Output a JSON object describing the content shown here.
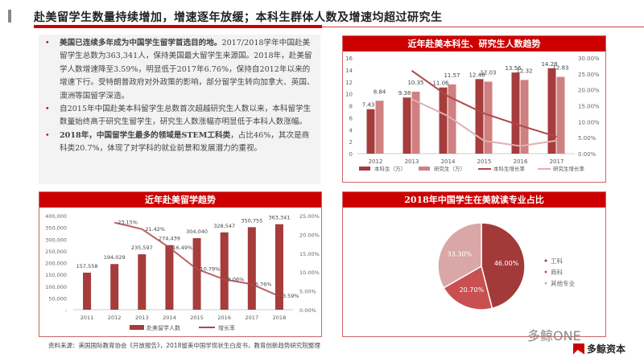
{
  "header": {
    "title": "赴美留学生数量持续增加，增速逐年放缓；本科生群体人数及增速均超过研究生"
  },
  "bullets": [
    {
      "bold": "美国已连续多年成为中国学生留学首选目的地。",
      "text": "2017/2018学年中国赴美留学生总数为363,341人，保持美国最大留学生来源国。2018年，赴美留学人数增速降至3.59%，明显低于2017年6.76%，保持自2012年以来的增速下行。受特朗普政府对外政策的影响，部分留学生转向加拿大、英国、澳洲等国留学深造。"
    },
    {
      "bold": "",
      "text": "自2015年中国赴美本科留学生总数首次超越研究生人数以来，本科留学生数量始终高于研究生留学生，研究生人数涨幅亦明显低于本科人数涨幅。"
    },
    {
      "bold": "2018年，中国留学生最多的领域是STEM工科类",
      "text": "，占比46%，其次是商科类20.7%，体现了对学科的就业前景和发展潜力的重视。",
      "prefix": ""
    }
  ],
  "colors": {
    "dark": "#a63c3c",
    "light": "#d08080",
    "line1": "#b04848",
    "line2": "#e0b0b0",
    "red": "#cc0000",
    "pie": [
      "#a33a3a",
      "#c85050",
      "#d9a7a7"
    ]
  },
  "chart_data": [
    {
      "type": "bar",
      "title": "近年赴美本科生、研究生人数趋势",
      "categories": [
        "2012",
        "2013",
        "2014",
        "2015",
        "2016",
        "2017"
      ],
      "series": [
        {
          "name": "本科生（万）",
          "values": [
            7.43,
            9.38,
            11.06,
            12.46,
            13.56,
            14.28
          ],
          "labels": [
            "7.43",
            "9.38",
            "11.06",
            "12.46",
            "13.56",
            "14.28"
          ]
        },
        {
          "name": "研究生（万）",
          "values": [
            8.84,
            10.35,
            11.57,
            12.03,
            12.32,
            12.83
          ],
          "labels": [
            "8.84",
            "10.35",
            "11.57",
            "12.03",
            "12.32",
            "12.83"
          ]
        },
        {
          "name": "本科生增长率",
          "type": "line",
          "axis": "right",
          "values": [
            null,
            26.0,
            18.0,
            12.6,
            8.8,
            5.3
          ]
        },
        {
          "name": "研究生增长率",
          "type": "line",
          "axis": "right",
          "values": [
            null,
            17.1,
            11.8,
            4.0,
            2.4,
            4.1
          ]
        }
      ],
      "ylim": [
        0,
        16
      ],
      "yticks": [
        "0",
        "2",
        "4",
        "6",
        "8",
        "10",
        "12",
        "14",
        "16"
      ],
      "y2lim": [
        0,
        30
      ],
      "y2ticks": [
        "0.00%",
        "5.00%",
        "10.00%",
        "15.00%",
        "20.00%",
        "25.00%",
        "30.00%"
      ],
      "legend": "bottom"
    },
    {
      "type": "bar",
      "title": "近年赴美留学趋势",
      "categories": [
        "2011",
        "2012",
        "2013",
        "2014",
        "2015",
        "2016",
        "2017",
        "2018"
      ],
      "series": [
        {
          "name": "赴美留学人数",
          "values": [
            157558,
            194029,
            235597,
            274439,
            304040,
            328547,
            350755,
            363341
          ],
          "labels": [
            "157,558",
            "194,029",
            "235,597",
            "274,439",
            "304,040",
            "328,547",
            "350,755",
            "363,341"
          ]
        },
        {
          "name": "增长率",
          "type": "line",
          "axis": "right",
          "values": [
            null,
            23.15,
            21.42,
            16.49,
            10.79,
            8.06,
            6.76,
            3.59
          ],
          "labels": [
            "",
            "23.15%",
            "21.42%",
            "16.49%",
            "10.79%",
            "8.06%",
            "6.76%",
            "3.59%"
          ]
        }
      ],
      "ylim": [
        0,
        400000
      ],
      "yticks": [
        "-",
        "50,000",
        "100,000",
        "150,000",
        "200,000",
        "250,000",
        "300,000",
        "350,000",
        "400,000"
      ],
      "y2lim": [
        0,
        25
      ],
      "y2ticks": [
        "0.00%",
        "5.00%",
        "10.00%",
        "15.00%",
        "20.00%",
        "25.00%"
      ],
      "legend": "bottom"
    },
    {
      "type": "pie",
      "title": "2018年中国学生在美就读专业占比",
      "categories": [
        "工科",
        "商科",
        "其他专业"
      ],
      "values": [
        46.0,
        20.7,
        33.3
      ],
      "labels": [
        "46.00%",
        "20.70%",
        "33.30%"
      ],
      "legend": "right"
    }
  ],
  "footer": {
    "source": "资料来源：美国国际教育协会《开放报告》，2018留美中国学现状生白皮书，教育创新趋势研究院整理",
    "watermark": "多鲸ONE",
    "logo": "多鲸资本"
  }
}
